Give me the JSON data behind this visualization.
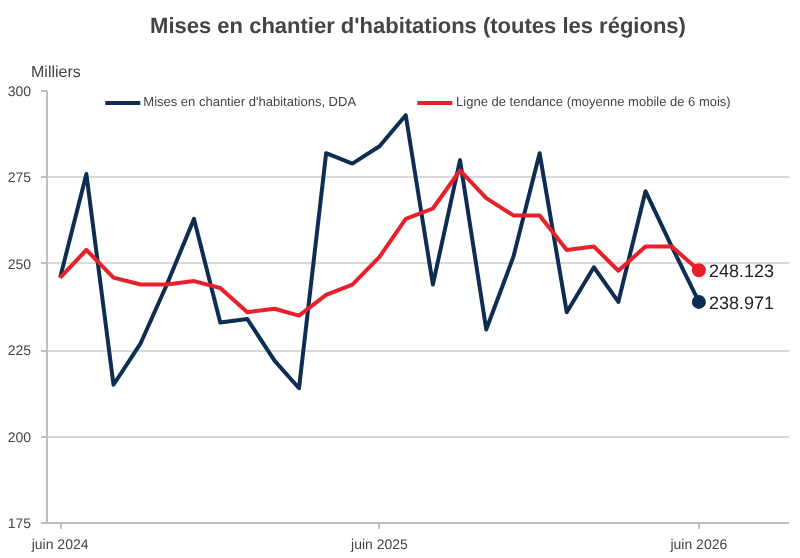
{
  "chart_data": {
    "type": "line",
    "title": "Mises en chantier d'habitations (toutes les régions)",
    "ylabel": "Milliers",
    "x": [
      "2024-06",
      "2024-07",
      "2024-08",
      "2024-09",
      "2024-10",
      "2024-11",
      "2024-12",
      "2025-01",
      "2025-02",
      "2025-03",
      "2025-04",
      "2025-05",
      "2025-06",
      "2025-07",
      "2025-08",
      "2025-09",
      "2025-10",
      "2025-11",
      "2025-12",
      "2026-01",
      "2026-02",
      "2026-03",
      "2026-04",
      "2026-05",
      "2026-06"
    ],
    "series": [
      {
        "name": "Mises en chantier d'habitations, DDA",
        "color": "#0d2e52",
        "values": [
          246,
          276,
          215,
          227,
          244,
          263,
          233,
          234,
          222,
          214,
          282,
          279,
          284,
          293,
          244,
          280,
          231,
          252,
          282,
          236,
          249,
          239,
          271,
          255,
          238.971
        ],
        "value_labels": [
          null,
          null,
          null,
          null,
          null,
          null,
          null,
          null,
          null,
          null,
          null,
          null,
          null,
          null,
          null,
          null,
          null,
          null,
          null,
          null,
          null,
          null,
          null,
          null,
          "238.971"
        ]
      },
      {
        "name": "Ligne de tendance (moyenne mobile de 6 mois)",
        "color": "#e8202a",
        "values": [
          246,
          254,
          246,
          244,
          244,
          245,
          243,
          236,
          237,
          235,
          241,
          244,
          252,
          263,
          266,
          277,
          269,
          264,
          264,
          254,
          255,
          248,
          255,
          255,
          248.123
        ],
        "value_labels": [
          null,
          null,
          null,
          null,
          null,
          null,
          null,
          null,
          null,
          null,
          null,
          null,
          null,
          null,
          null,
          null,
          null,
          null,
          null,
          null,
          null,
          null,
          null,
          null,
          "248.123"
        ]
      }
    ],
    "xlim": [
      "2024-05-17",
      "2026-09-12"
    ],
    "xticks": [
      {
        "value": "2024-06",
        "label": "juin 2024"
      },
      {
        "value": "2025-06",
        "label": "juin 2025"
      },
      {
        "value": "2026-06",
        "label": "juin 2026"
      }
    ],
    "ylim": [
      175,
      300
    ],
    "yticks": [
      175,
      200,
      225,
      250,
      275,
      300
    ],
    "grid": "y",
    "legend": "top",
    "line_style": "solid"
  }
}
